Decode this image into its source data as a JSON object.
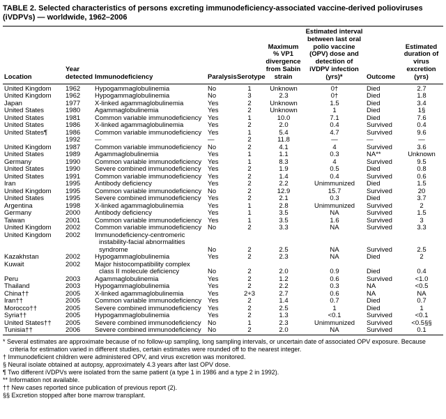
{
  "title": "TABLE 2. Selected characteristics of persons excreting immunodeficiency-associated vaccine-derived polioviruses (iVDPVs) — worldwide, 1962–2006",
  "table": {
    "headers": [
      "Location",
      "Year detected",
      "Immunodeficiency",
      "Paralysis",
      "Serotype",
      "Maximum % VP1 divergence from Sabin strain",
      "Estimated interval between last oral polio vaccine (OPV) dose and detection of iVDPV infection (yrs)*",
      "Outcome",
      "Estimated duration of virus excretion (yrs)"
    ],
    "rows": [
      [
        "United Kingdom",
        "1962",
        "Hypogammaglobulinemia",
        "No",
        "1",
        "Unknown",
        "0†",
        "Died",
        "2.7"
      ],
      [
        "United Kingdom",
        "1962",
        "Hypogammaglobulinemia",
        "No",
        "3",
        "2.3",
        "0†",
        "Died",
        "1.8"
      ],
      [
        "Japan",
        "1977",
        "X-linked agammaglobulinemia",
        "Yes",
        "2",
        "Unknown",
        "1.5",
        "Died",
        "3.4"
      ],
      [
        "United States",
        "1980",
        "Agammaglobulinemia",
        "Yes",
        "2",
        "Unknown",
        "1",
        "Died",
        "1§"
      ],
      [
        "United States",
        "1981",
        "Common variable immunodeficiency",
        "Yes",
        "1",
        "10.0",
        "7.1",
        "Died",
        "7.6"
      ],
      [
        "United States",
        "1986",
        "X-linked agammaglobulinemia",
        "Yes",
        "2",
        "2.0",
        "0.4",
        "Survived",
        "0.4"
      ],
      [
        "United States¶",
        "1986",
        "Common variable immunodeficiency",
        "Yes",
        "1",
        "5.4",
        "4.7",
        "Survived",
        "9.6"
      ],
      [
        "",
        "1992",
        "—",
        "—",
        "2",
        "11.8",
        "—",
        "—",
        "—"
      ],
      [
        "United Kingdom",
        "1987",
        "Common variable immunodeficiency",
        "No",
        "2",
        "4.1",
        "4",
        "Survived",
        "3.6"
      ],
      [
        "United States",
        "1989",
        "Agammaglobulinemia",
        "Yes",
        "1",
        "1.1",
        "0.3",
        "NA**",
        "Unknown"
      ],
      [
        "Germany",
        "1990",
        "Common variable immunodeficiency",
        "Yes",
        "1",
        "8.3",
        "4",
        "Survived",
        "9.5"
      ],
      [
        "United States",
        "1990",
        "Severe combined immunodeficiency",
        "Yes",
        "2",
        "1.9",
        "0.5",
        "Died",
        "0.8"
      ],
      [
        "United States",
        "1991",
        "Common variable immunodeficiency",
        "Yes",
        "2",
        "1.4",
        "0.4",
        "Survived",
        "0.6"
      ],
      [
        "Iran",
        "1995",
        "Antibody deficiency",
        "Yes",
        "2",
        "2.2",
        "Unimmunized",
        "Died",
        "1.5"
      ],
      [
        "United Kingdom",
        "1995",
        "Common variable immunodeficiency",
        "No",
        "2",
        "12.9",
        "15.7",
        "Survived",
        "20"
      ],
      [
        "United States",
        "1995",
        "Severe combined immunodeficiency",
        "Yes",
        "2",
        "2.1",
        "0.3",
        "Died",
        "3.7"
      ],
      [
        "Argentina",
        "1998",
        "X-linked agammaglobulinemia",
        "Yes",
        "1",
        "2.8",
        "Unimmunized",
        "Survived",
        "2"
      ],
      [
        "Germany",
        "2000",
        "Antibody deficiency",
        "Yes",
        "1",
        "3.5",
        "NA",
        "Survived",
        "1.5"
      ],
      [
        "Taiwan",
        "2001",
        "Common variable immunodeficiency",
        "Yes",
        "1",
        "3.5",
        "1.6",
        "Survived",
        "3"
      ],
      [
        "United Kingdom",
        "2002",
        "Common variable immunodeficiency",
        "No",
        "2",
        "3.3",
        "NA",
        "Survived",
        "3.3"
      ],
      [
        "United Kingdom",
        "2002",
        "Immunodeficiency-centromeric instability-facial abnormalities syndrome",
        "No",
        "2",
        "2.5",
        "NA",
        "Survived",
        "2.5"
      ],
      [
        "Kazakhstan",
        "2002",
        "Hypogammaglobulinemia",
        "Yes",
        "2",
        "2.3",
        "NA",
        "Died",
        "2"
      ],
      [
        "Kuwait",
        "2002",
        "Major histocompatibility complex class II molecule deficiency",
        "No",
        "2",
        "2.0",
        "0.9",
        "Died",
        "0.4"
      ],
      [
        "Peru",
        "2003",
        "Agammaglobulinemia",
        "Yes",
        "2",
        "1.2",
        "0.6",
        "Survived",
        "<1.0"
      ],
      [
        "Thailand",
        "2003",
        "Hypogammaglobulinemia",
        "Yes",
        "2",
        "2.2",
        "0.3",
        "NA",
        "<0.5"
      ],
      [
        "China††",
        "2005",
        "X-linked agammaglobulinemia",
        "Yes",
        "2+3",
        "2.7",
        "0.6",
        "NA",
        "NA"
      ],
      [
        "Iran††",
        "2005",
        "Common variable immunodeficiency",
        "Yes",
        "2",
        "1.4",
        "0.7",
        "Died",
        "0.7"
      ],
      [
        "Morocco††",
        "2005",
        "Severe combined immunodeficiency",
        "Yes",
        "2",
        "2.5",
        "1",
        "Died",
        "1"
      ],
      [
        "Syria††",
        "2005",
        "Hypogammaglobulinemia",
        "Yes",
        "2",
        "1.3",
        "<0.1",
        "Survived",
        "<0.1"
      ],
      [
        "United States††",
        "2005",
        "Severe combined immunodeficiency",
        "No",
        "1",
        "2.3",
        "Unimmunized",
        "Survived",
        "<0.5§§"
      ],
      [
        "Tunisia††",
        "2006",
        "Severe combined immunodeficiency",
        "No",
        "2",
        "2.0",
        "NA",
        "Survived",
        "0.1"
      ]
    ]
  },
  "footnotes": [
    "* Several estimates are approximate because of no follow-up sampling, long sampling intervals, or uncertain date of associated OPV exposure. Because criteria for estimation varied in different studies, certain estimates were rounded off to the nearest integer.",
    "† Immunodeficient children were administered OPV, and virus excretion was monitored.",
    "§ Neural isolate obtained at autopsy, approximately 4.3 years after last OPV dose.",
    "¶ Two different iVDPVs were isolated from the same patient (a type 1 in 1986 and a type 2 in 1992).",
    "** Information not available.",
    "†† New cases reported since publication of previous report (2).",
    "§§ Excretion stopped after bone marrow transplant."
  ]
}
